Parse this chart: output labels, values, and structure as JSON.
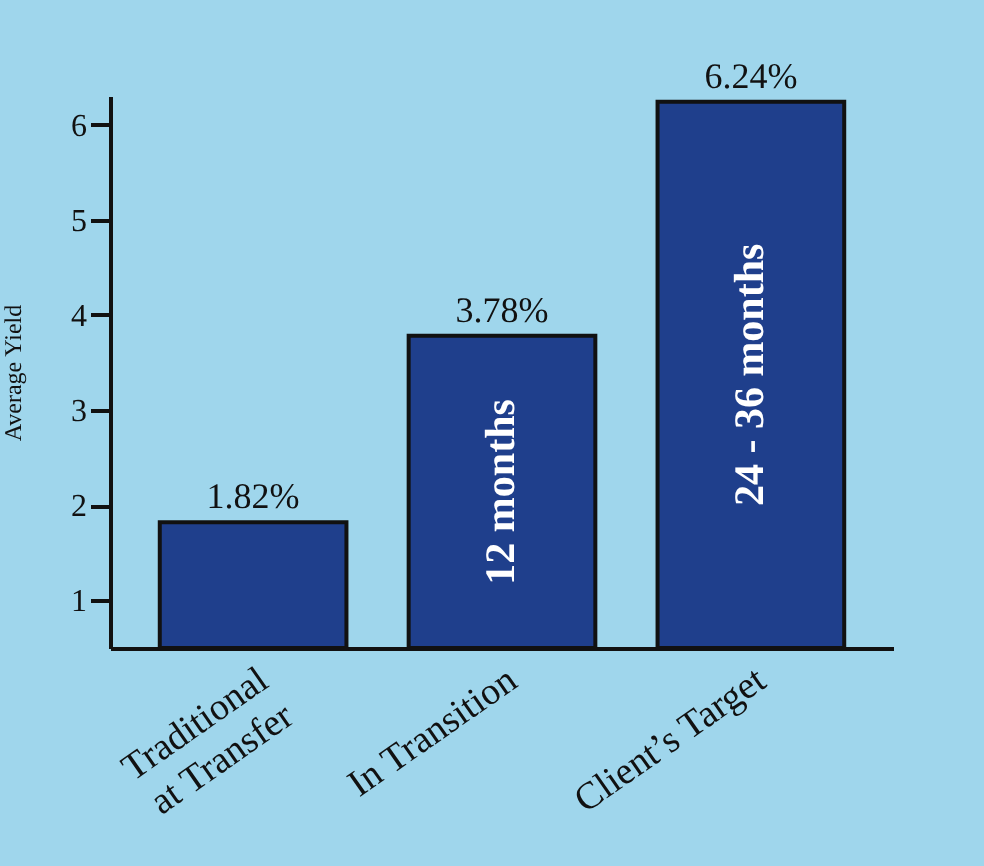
{
  "chart_data": {
    "type": "bar",
    "ylabel": "Average Yield",
    "categories": [
      "Traditional\nat Transfer",
      "In Transition",
      "Client’s Target"
    ],
    "values": [
      1.82,
      3.78,
      6.24
    ],
    "color": "#1f3f8c",
    "value_labels": [
      "1.82%",
      "3.78%",
      "6.24%"
    ],
    "ylim": [
      0.5,
      6.3
    ],
    "yticks": [
      1,
      2,
      3,
      4,
      5,
      6
    ],
    "grid": false,
    "annotations": [
      "12 months",
      "24 - 36 months"
    ]
  }
}
